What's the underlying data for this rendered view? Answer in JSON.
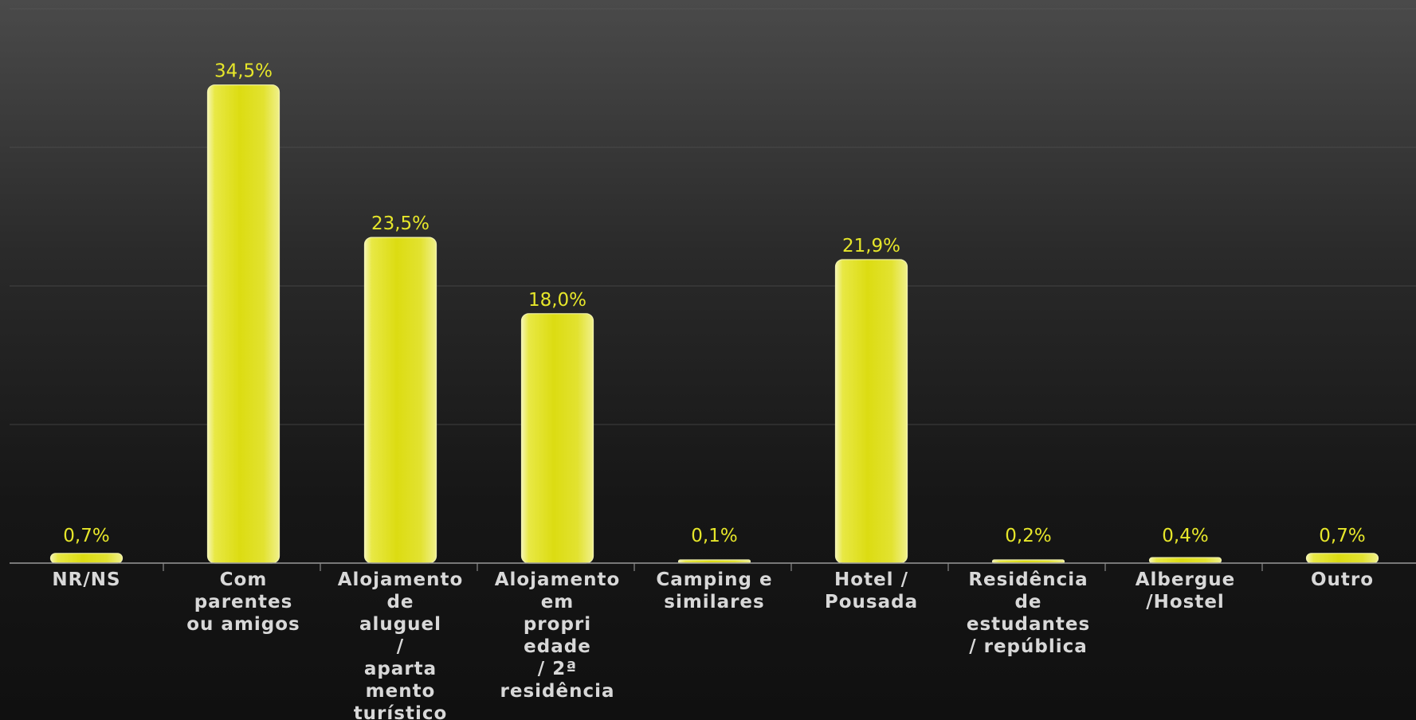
{
  "chart_data": {
    "type": "bar",
    "categories": [
      "NR/NS",
      "Com parentes ou amigos",
      "Alojamento de aluguel / aparta mento turístico",
      "Alojamento em propri edade / 2ª residência",
      "Camping e similares",
      "Hotel / Pousada",
      "Residência de estudantes / república",
      "Albergue /Hostel",
      "Outro"
    ],
    "category_lines": [
      [
        "NR/NS"
      ],
      [
        "Com",
        "parentes",
        "ou amigos"
      ],
      [
        "Alojamento",
        "de",
        "aluguel",
        "/",
        "aparta",
        "mento",
        "turístico"
      ],
      [
        "Alojamento",
        "em",
        "propri",
        "edade",
        "/ 2ª",
        "residência"
      ],
      [
        "Camping e",
        "similares"
      ],
      [
        "Hotel /",
        "Pousada"
      ],
      [
        "Residência",
        "de",
        "estudantes",
        "/ república"
      ],
      [
        "Albergue",
        "/Hostel"
      ],
      [
        "Outro"
      ]
    ],
    "values": [
      0.7,
      34.5,
      23.5,
      18.0,
      0.1,
      21.9,
      0.2,
      0.4,
      0.7
    ],
    "value_labels": [
      "0,7%",
      "34,5%",
      "23,5%",
      "18,0%",
      "0,1%",
      "21,9%",
      "0,2%",
      "0,4%",
      "0,7%"
    ],
    "ylim": [
      0,
      40
    ],
    "grid": true,
    "legend": "none",
    "colors": {
      "bar": "#dede1a",
      "bar_highlight": "#f4f4a0",
      "value_label": "#e6e62a",
      "category_label": "#d8d8d8"
    }
  }
}
